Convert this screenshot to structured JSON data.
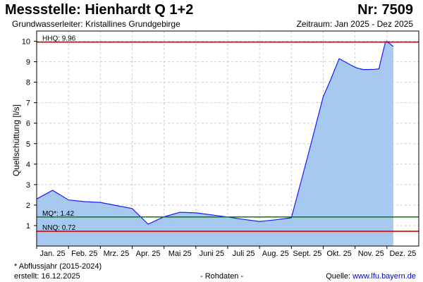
{
  "header": {
    "title": "Messstelle: Hienhardt Q 1+2",
    "number": "Nr: 7509",
    "aquifer": "Grundwasserleiter: Kristallines Grundgebirge",
    "period": "Zeitraum: Jan 2025 - Dez 2025"
  },
  "footer": {
    "footnote": "* Abflussjahr (2015-2024)",
    "created": "erstellt:  16.12.2025",
    "raw_data": "- Rohdaten -",
    "source_label": "Quelle: ",
    "source_link": "www.lfu.bayern.de"
  },
  "colors": {
    "area_fill": "#a7c9f0",
    "line": "#1a1aff",
    "hhq_line": "#dd0000",
    "mq_line": "#008000",
    "nnq_line": "#dd0000",
    "grid": "#cccccc"
  },
  "chart_data": {
    "type": "area",
    "title": "Messstelle: Hienhardt Q 1+2",
    "ylabel": "Quellschüttung [l/s]",
    "xlabel": "",
    "ylim": [
      0,
      10.5
    ],
    "xlim": [
      0,
      12
    ],
    "y_ticks": [
      1,
      2,
      3,
      4,
      5,
      6,
      7,
      8,
      9,
      10
    ],
    "x_tick_labels": [
      "Jan. 25",
      "Feb. 25",
      "Mrz. 25",
      "Apr. 25",
      "Mai 25",
      "Juni 25",
      "Juli 25",
      "Aug. 25",
      "Sept. 25",
      "Okt. 25",
      "Nov. 25",
      "Dez. 25"
    ],
    "grid": true,
    "series": [
      {
        "x": [
          0.0,
          0.5,
          1.0,
          1.5,
          2.0,
          2.5,
          3.0,
          3.5,
          4.0,
          4.5,
          5.0,
          5.5,
          6.0,
          6.5,
          7.0,
          7.5,
          8.0,
          8.5,
          9.0,
          9.2,
          9.5,
          9.85,
          10.0,
          10.1,
          10.25,
          10.4,
          10.6,
          10.75,
          10.8,
          10.88,
          10.95,
          11.0,
          11.04,
          11.1,
          11.15,
          11.2
        ],
        "values": [
          2.3,
          2.72,
          2.25,
          2.17,
          2.13,
          1.98,
          1.83,
          1.07,
          1.43,
          1.65,
          1.62,
          1.52,
          1.42,
          1.3,
          1.2,
          1.28,
          1.38,
          4.3,
          7.3,
          8.0,
          9.15,
          8.85,
          8.73,
          8.68,
          8.62,
          8.62,
          8.63,
          8.65,
          9.0,
          9.5,
          9.95,
          10.0,
          9.93,
          9.88,
          9.8,
          9.75
        ]
      }
    ],
    "reference_lines": [
      {
        "label": "HHQ: 9.96",
        "value": 9.96
      },
      {
        "label": "MQ*: 1.42",
        "value": 1.42
      },
      {
        "label": "NNQ: 0.72",
        "value": 0.72
      }
    ]
  }
}
